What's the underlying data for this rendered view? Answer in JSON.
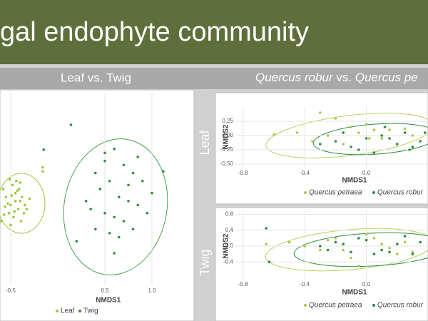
{
  "slide": {
    "title": "gal endophyte community",
    "left_header": "Leaf vs. Twig",
    "right_header": [
      "Quercus robur",
      " vs. ",
      "Quercus pe"
    ]
  },
  "chart_data": [
    {
      "type": "scatter",
      "xlabel": "NMDS1",
      "xlim": [
        -0.6,
        1.4
      ],
      "ylim": [
        -1.2,
        1.2
      ],
      "xticks": [
        -0.5,
        0.5,
        {
          "value": 1,
          "label": "1.0"
        }
      ],
      "grid": true,
      "series": [
        {
          "name": "Leaf",
          "color": "#9dc43a",
          "x": [
            -0.55,
            -0.5,
            -0.45,
            -0.4,
            -0.52,
            -0.48,
            -0.42,
            -0.38,
            -0.35,
            -0.6,
            -0.58,
            -0.47,
            -0.44,
            -0.5,
            -0.53,
            -0.41,
            -0.36,
            -0.3,
            -0.56,
            -0.49,
            -0.46,
            -0.43,
            -0.39,
            -0.51,
            -0.57,
            -0.33,
            -0.45,
            -0.4,
            -0.16,
            -0.16
          ],
          "values": [
            -0.1,
            -0.2,
            -0.05,
            -0.15,
            -0.3,
            0.05,
            -0.25,
            -0.1,
            -0.2,
            -0.4,
            0,
            -0.35,
            0.1,
            -0.45,
            -0.18,
            0,
            -0.3,
            -0.12,
            -0.22,
            -0.08,
            -0.28,
            -0.02,
            -0.4,
            0.12,
            -0.32,
            -0.25,
            -0.15,
            0.08,
            0.27,
            0.22
          ]
        },
        {
          "name": "Twig",
          "color": "#2e8b3a",
          "x": [
            0.14,
            -0.15,
            0.5,
            0.6,
            0.7,
            0.8,
            0.4,
            0.55,
            0.9,
            1,
            0.45,
            0.65,
            0.75,
            0.85,
            0.35,
            0.5,
            0.6,
            0.7,
            0.95,
            0.4,
            0.55,
            0.65,
            0.8,
            0.3,
            0.5,
            0.75,
            0.6,
            0.85,
            1.12,
            0.2
          ],
          "values": [
            0.8,
            0.49,
            0.45,
            0.5,
            0.3,
            0.2,
            0.2,
            0.1,
            0.1,
            -0.05,
            0,
            -0.1,
            -0.15,
            -0.2,
            -0.25,
            -0.3,
            -0.35,
            -0.4,
            -0.3,
            -0.5,
            -0.55,
            -0.6,
            -0.5,
            -0.15,
            0.35,
            0.05,
            -0.8,
            0.4,
            0.22,
            -0.65
          ]
        }
      ]
    },
    {
      "type": "scatter",
      "title": "Leaf",
      "xlabel": "NMDS1",
      "ylabel": "NMDS2",
      "xlim": [
        -0.85,
        0.4
      ],
      "ylim": [
        -0.55,
        0.5
      ],
      "xticks": [
        -0.8,
        -0.4,
        {
          "value": 0,
          "label": "0.0"
        }
      ],
      "yticks": [
        {
          "value": 0.25,
          "label": "0.25"
        },
        {
          "value": 0,
          "label": "0.00"
        },
        {
          "value": -0.25,
          "label": "-0.25"
        },
        {
          "value": -0.5,
          "label": "-0.50"
        }
      ],
      "grid": true,
      "series": [
        {
          "name": "Quercus petraea",
          "color": "#a6c94a",
          "x": [
            -0.6,
            -0.45,
            -0.3,
            -0.2,
            -0.1,
            0,
            0.05,
            0.1,
            -0.35,
            -0.25,
            -0.05,
            0.15,
            0.25,
            -0.15,
            0.02,
            0.3
          ],
          "values": [
            0.02,
            0.05,
            0.4,
            0.3,
            0.15,
            0.2,
            0.1,
            -0.05,
            -0.1,
            0,
            0.05,
            0.1,
            0.12,
            -0.15,
            -0.05,
            0
          ]
        },
        {
          "name": "Quercus robur",
          "color": "#2e8b3f",
          "x": [
            -0.2,
            -0.1,
            0,
            0.1,
            0.2,
            0.3,
            -0.3,
            0.05,
            0.15,
            0.25,
            -0.15,
            0.35,
            -0.05,
            0.12,
            0.28,
            0.38
          ],
          "values": [
            -0.1,
            -0.2,
            -0.05,
            0,
            -0.15,
            -0.2,
            -0.15,
            -0.3,
            -0.05,
            0.05,
            0.05,
            -0.1,
            -0.25,
            0.15,
            -0.25,
            0.05
          ]
        }
      ]
    },
    {
      "type": "scatter",
      "title": "Twig",
      "xlabel": "NMDS1",
      "ylabel": "NMDS2",
      "xlim": [
        -0.85,
        0.4
      ],
      "ylim": [
        -0.9,
        0.9
      ],
      "xticks": [
        -0.8,
        -0.4,
        {
          "value": 0,
          "label": "0.0"
        }
      ],
      "yticks": [
        0.8,
        0.4,
        {
          "value": 0,
          "label": "0.0"
        },
        -0.4
      ],
      "grid": true,
      "series": [
        {
          "name": "Quercus petraea",
          "color": "#a6c94a",
          "x": [
            -0.65,
            -0.5,
            -0.3,
            -0.2,
            -0.1,
            0,
            0.1,
            0.2,
            -0.4,
            -0.15,
            0.05,
            0.25,
            -0.25,
            0.15,
            0.3,
            -0.05
          ],
          "values": [
            0.05,
            0.1,
            -0.1,
            0.2,
            -0.3,
            0.3,
            0.05,
            -0.2,
            0,
            -0.1,
            0.2,
            0.1,
            0.15,
            -0.05,
            -0.15,
            -0.5
          ]
        },
        {
          "name": "Quercus robur",
          "color": "#2e8b3f",
          "x": [
            -0.65,
            -0.63,
            -0.3,
            -0.2,
            -0.1,
            0,
            0.1,
            0.2,
            0.3,
            -0.15,
            0.05,
            0.25,
            -0.05,
            0.15,
            0.35,
            -0.25
          ],
          "values": [
            0.45,
            -0.4,
            0,
            0.1,
            -0.15,
            0.15,
            -0.1,
            0.05,
            -0.2,
            0.05,
            -0.2,
            0.25,
            0.2,
            -0.15,
            0.1,
            -0.1
          ]
        }
      ]
    }
  ]
}
